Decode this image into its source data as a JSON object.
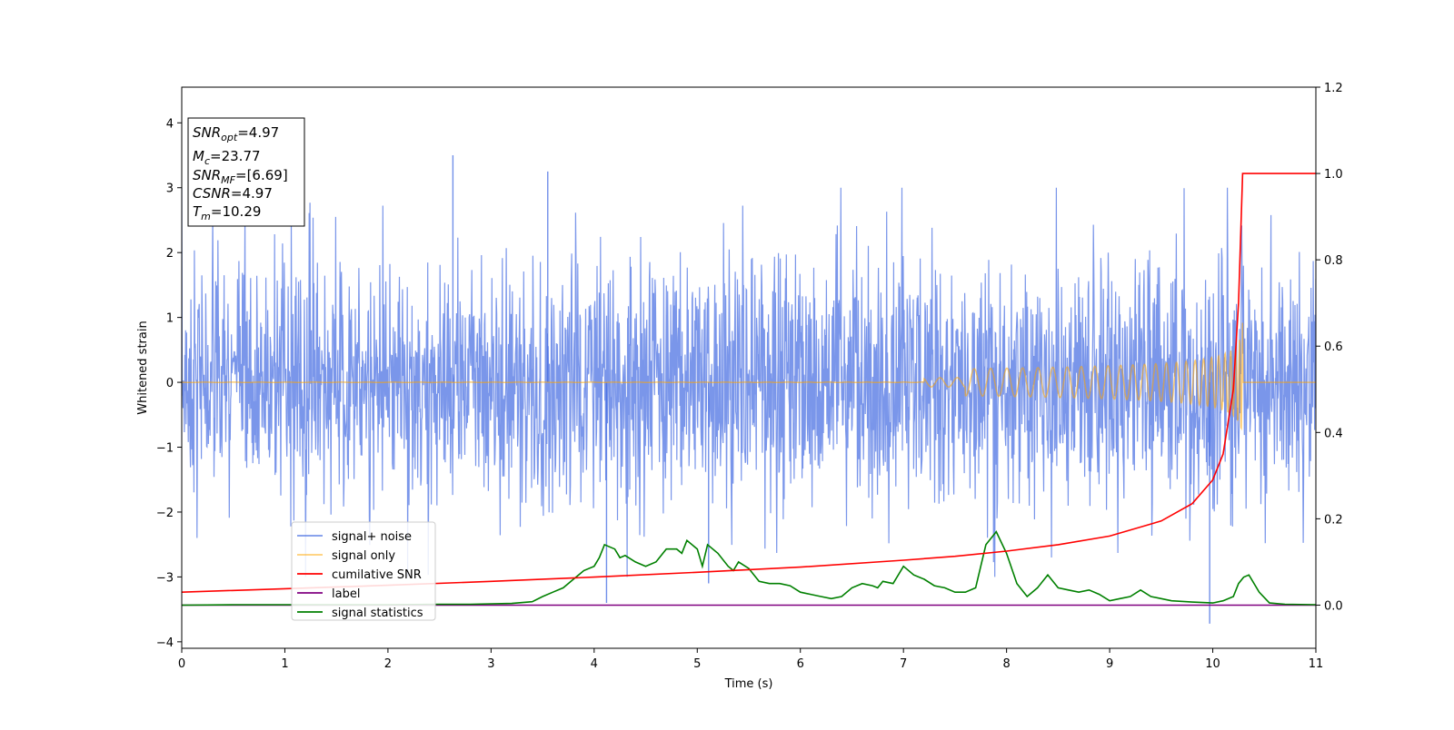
{
  "chart_data": {
    "type": "line",
    "title": "",
    "xlabel": "Time (s)",
    "ylabel": "Whitened strain",
    "xlim": [
      0,
      11
    ],
    "ylim": [
      -4.1,
      4.55
    ],
    "y2lim": [
      -0.1,
      1.2
    ],
    "xticks": [
      0,
      1,
      2,
      3,
      4,
      5,
      6,
      7,
      8,
      9,
      10,
      11
    ],
    "yticks": [
      -4,
      -3,
      -2,
      -1,
      0,
      1,
      2,
      3,
      4
    ],
    "y2ticks": [
      0.0,
      0.2,
      0.4,
      0.6,
      0.8,
      1.0,
      1.2
    ],
    "xtick_labels": [
      "0",
      "1",
      "2",
      "3",
      "4",
      "5",
      "6",
      "7",
      "8",
      "9",
      "10",
      "11"
    ],
    "ytick_labels": [
      "−4",
      "−3",
      "−2",
      "−1",
      "0",
      "1",
      "2",
      "3",
      "4"
    ],
    "y2tick_labels": [
      "0.0",
      "0.2",
      "0.4",
      "0.6",
      "0.8",
      "1.0",
      "1.2"
    ],
    "grid": false,
    "legend_position": "lower-left",
    "annotation": {
      "snr_opt": "=4.97",
      "mc": "=23.77",
      "snr_mf": "=[6.69]",
      "csnr": "=4.97",
      "tm": "=10.29"
    },
    "series": [
      {
        "name": "signal+ noise",
        "axis": "left",
        "color": "#4169e1",
        "description_stats": {
          "mean": 0,
          "std": 0.9,
          "peak_times": [
            2.63,
            3.55,
            4.12,
            5.11,
            9.97
          ],
          "peak_values": [
            3.5,
            3.25,
            -3.4,
            -3.1,
            -3.72
          ]
        }
      },
      {
        "name": "signal only",
        "axis": "left",
        "color": "#ffa500",
        "chirp": {
          "merger_time": 10.29,
          "peak_amplitude": 0.95
        }
      },
      {
        "name": "cumilative SNR",
        "axis": "right",
        "color": "#ff0000",
        "x": [
          0,
          1,
          2,
          3,
          4,
          5,
          6,
          7,
          7.5,
          8,
          8.5,
          9,
          9.5,
          9.8,
          10.0,
          10.1,
          10.2,
          10.25,
          10.29,
          10.3,
          11
        ],
        "y": [
          0.03,
          0.038,
          0.046,
          0.055,
          0.065,
          0.076,
          0.088,
          0.104,
          0.113,
          0.125,
          0.14,
          0.16,
          0.195,
          0.235,
          0.29,
          0.35,
          0.5,
          0.7,
          1.0,
          1.0,
          1.0
        ]
      },
      {
        "name": "label",
        "axis": "right",
        "color": "#800080",
        "x": [
          0,
          11
        ],
        "y": [
          0,
          0
        ]
      },
      {
        "name": "signal statistics",
        "axis": "right",
        "color": "#008000",
        "x": [
          0,
          0.5,
          1,
          1.5,
          2,
          2.5,
          2.8,
          3.2,
          3.4,
          3.5,
          3.6,
          3.7,
          3.8,
          3.9,
          4.0,
          4.05,
          4.1,
          4.2,
          4.25,
          4.3,
          4.4,
          4.5,
          4.6,
          4.7,
          4.8,
          4.85,
          4.9,
          5.0,
          5.05,
          5.1,
          5.2,
          5.3,
          5.35,
          5.4,
          5.5,
          5.6,
          5.7,
          5.8,
          5.9,
          6.0,
          6.1,
          6.2,
          6.3,
          6.4,
          6.5,
          6.6,
          6.7,
          6.75,
          6.8,
          6.9,
          7.0,
          7.1,
          7.2,
          7.3,
          7.4,
          7.5,
          7.6,
          7.7,
          7.8,
          7.9,
          8.0,
          8.1,
          8.2,
          8.3,
          8.4,
          8.5,
          8.6,
          8.7,
          8.8,
          8.9,
          9.0,
          9.1,
          9.2,
          9.3,
          9.4,
          9.5,
          9.6,
          9.8,
          10.0,
          10.1,
          10.2,
          10.25,
          10.3,
          10.35,
          10.45,
          10.55,
          10.7,
          11
        ],
        "y": [
          0.0,
          0.001,
          0.001,
          0.001,
          0.001,
          0.002,
          0.002,
          0.004,
          0.008,
          0.02,
          0.03,
          0.04,
          0.06,
          0.08,
          0.09,
          0.11,
          0.14,
          0.13,
          0.11,
          0.115,
          0.1,
          0.09,
          0.1,
          0.13,
          0.13,
          0.12,
          0.15,
          0.13,
          0.09,
          0.14,
          0.12,
          0.09,
          0.08,
          0.1,
          0.085,
          0.055,
          0.05,
          0.05,
          0.045,
          0.03,
          0.025,
          0.02,
          0.015,
          0.02,
          0.04,
          0.05,
          0.045,
          0.04,
          0.055,
          0.05,
          0.09,
          0.07,
          0.06,
          0.045,
          0.04,
          0.03,
          0.03,
          0.04,
          0.14,
          0.17,
          0.12,
          0.05,
          0.02,
          0.04,
          0.07,
          0.04,
          0.035,
          0.03,
          0.035,
          0.025,
          0.01,
          0.015,
          0.02,
          0.035,
          0.02,
          0.015,
          0.01,
          0.007,
          0.005,
          0.01,
          0.02,
          0.05,
          0.065,
          0.07,
          0.03,
          0.005,
          0.002,
          0.001
        ]
      }
    ]
  }
}
